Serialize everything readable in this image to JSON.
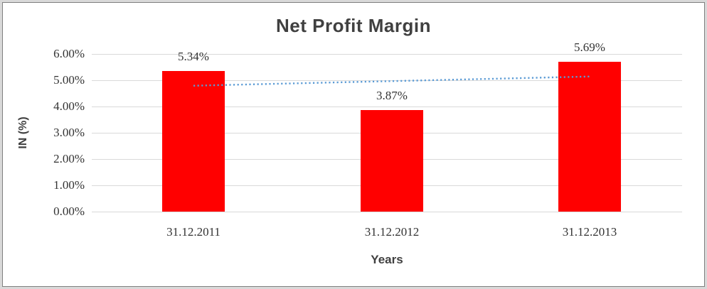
{
  "frame": {
    "outer_border_color": "#d9d9d9",
    "inner_border_color": "#7f7f7f",
    "background": "#ffffff"
  },
  "chart_data": {
    "type": "bar",
    "title": "Net Profit Margin",
    "categories": [
      "31.12.2011",
      "31.12.2012",
      "31.12.2013"
    ],
    "values": [
      5.34,
      3.87,
      5.69
    ],
    "value_labels": [
      "5.34%",
      "3.87%",
      "5.69%"
    ],
    "xlabel": "Years",
    "ylabel": "IN (%)",
    "ylim": [
      0,
      6
    ],
    "yticks": [
      "0.00%",
      "1.00%",
      "2.00%",
      "3.00%",
      "4.00%",
      "5.00%",
      "6.00%"
    ],
    "grid": "horizontal",
    "legend": "none",
    "trendline": {
      "fit": "linear",
      "style": "dotted",
      "spans": "first-bar-center to last-bar-center"
    },
    "colors": {
      "bar": "#ff0000",
      "trendline": "#5b9bd5",
      "gridline": "#d9d9d9",
      "title_text": "#404040",
      "axis_text": "#333333"
    }
  }
}
